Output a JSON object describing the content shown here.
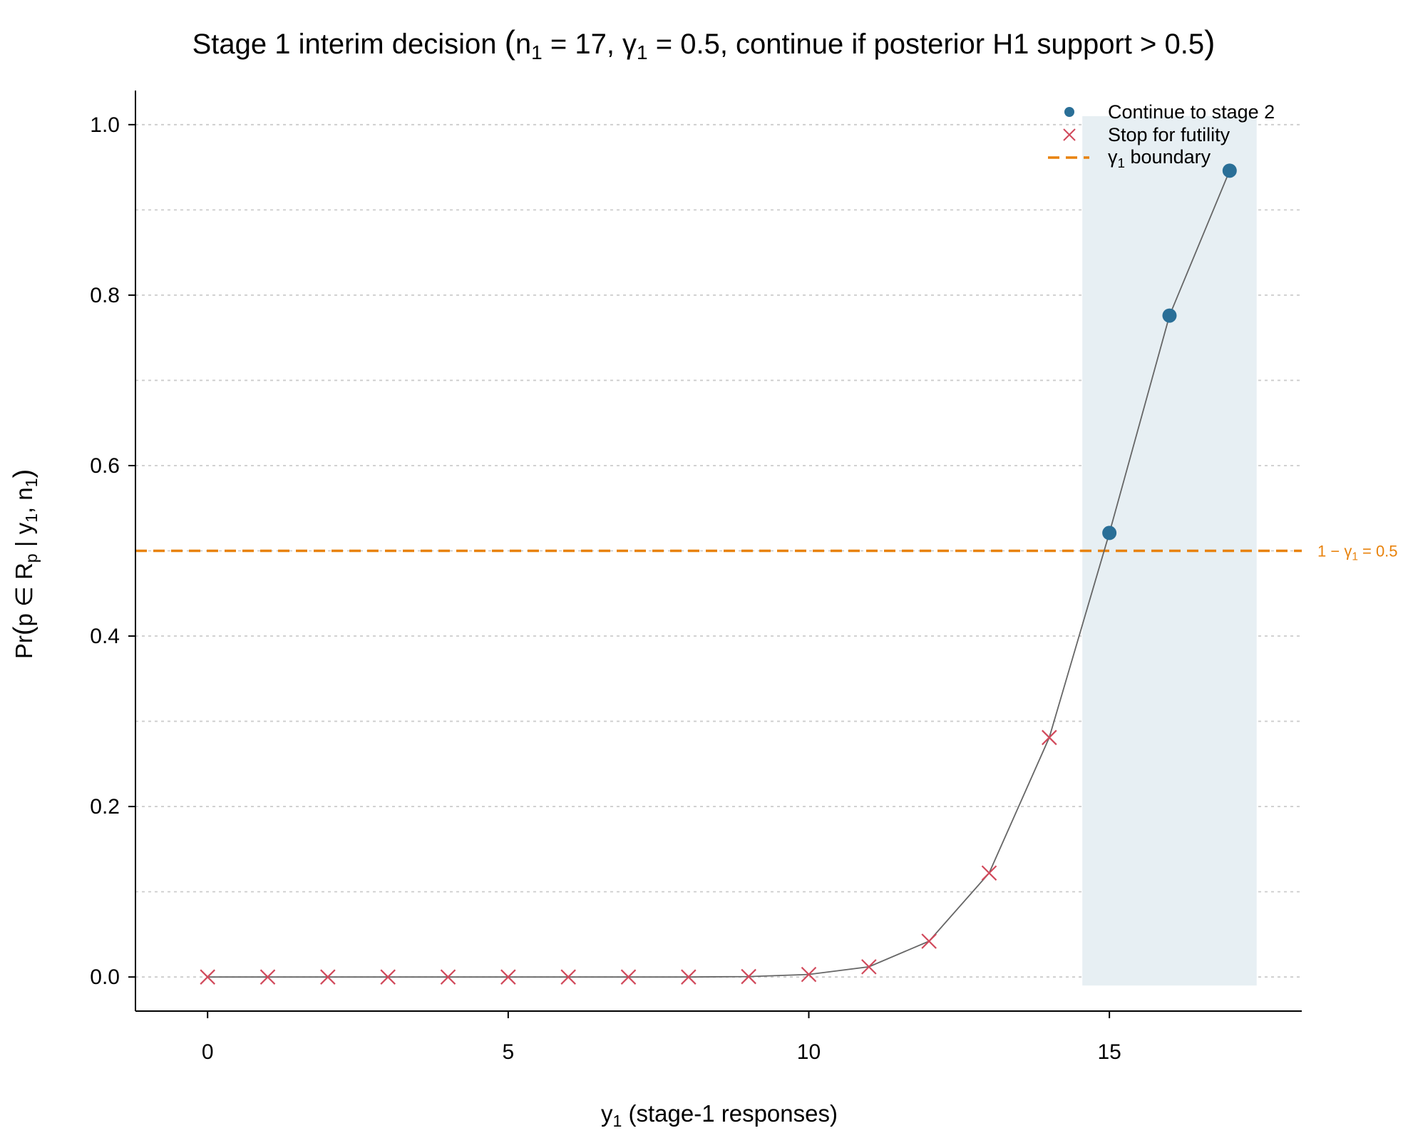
{
  "chart_data": {
    "type": "line",
    "title": {
      "prefix": "Stage 1 interim decision ",
      "n_sym": "n",
      "n_sub": "1",
      "n_eq": " = 17, ",
      "g_sym": "γ",
      "g_sub": "1",
      "g_eq": " = 0.5, continue if posterior H1 support > 0.5"
    },
    "xlabel": {
      "sym": "y",
      "sub": "1",
      "rest": " (stage-1 responses)"
    },
    "ylabel": {
      "a": "Pr",
      "b": "p ∈ R",
      "b_sub": "p",
      "c": " | y",
      "c_sub": "1",
      "d": ", n",
      "d_sub": "1"
    },
    "xlim": [
      -1.2,
      18.2
    ],
    "ylim": [
      -0.04,
      1.04
    ],
    "x_ticks": [
      0,
      5,
      10,
      15
    ],
    "x_tick_labels": [
      "0",
      "5",
      "10",
      "15"
    ],
    "y_ticks": [
      0.0,
      0.2,
      0.4,
      0.6,
      0.8,
      1.0
    ],
    "y_tick_labels": [
      "0.0",
      "0.2",
      "0.4",
      "0.6",
      "0.8",
      "1.0"
    ],
    "y_minor_grid": [
      0.1,
      0.3,
      0.5,
      0.7,
      0.9
    ],
    "grid": true,
    "x": [
      0,
      1,
      2,
      3,
      4,
      5,
      6,
      7,
      8,
      9,
      10,
      11,
      12,
      13,
      14,
      15,
      16,
      17
    ],
    "y": [
      0.0,
      0.0,
      0.0,
      0.0,
      0.0,
      0.0,
      0.0,
      0.0,
      0.0,
      0.0005,
      0.003,
      0.012,
      0.042,
      0.122,
      0.281,
      0.521,
      0.776,
      0.946
    ],
    "decision": [
      "stop",
      "stop",
      "stop",
      "stop",
      "stop",
      "stop",
      "stop",
      "stop",
      "stop",
      "stop",
      "stop",
      "stop",
      "stop",
      "stop",
      "stop",
      "continue",
      "continue",
      "continue"
    ],
    "continue_region": {
      "x_from": 14.55,
      "x_to": 17.45,
      "y_from": -0.01,
      "y_to": 1.01
    },
    "boundary": {
      "y": 0.5,
      "label_a": "1 − ",
      "label_sym": "γ",
      "label_sub": "1",
      "label_b": " = 0.5"
    },
    "legend": {
      "placement": "top-right",
      "items": [
        {
          "text": "Continue to stage 2"
        },
        {
          "text": "Stop for futility"
        },
        {
          "sym": "γ",
          "sub": "1",
          "text": " boundary"
        }
      ]
    },
    "colors": {
      "continue": "#2a6f97",
      "stop": "#d1495b",
      "boundary": "#e8820c",
      "line": "#666666",
      "region": "#e7eff3",
      "grid": "#cccccc",
      "axis": "#000000"
    }
  }
}
